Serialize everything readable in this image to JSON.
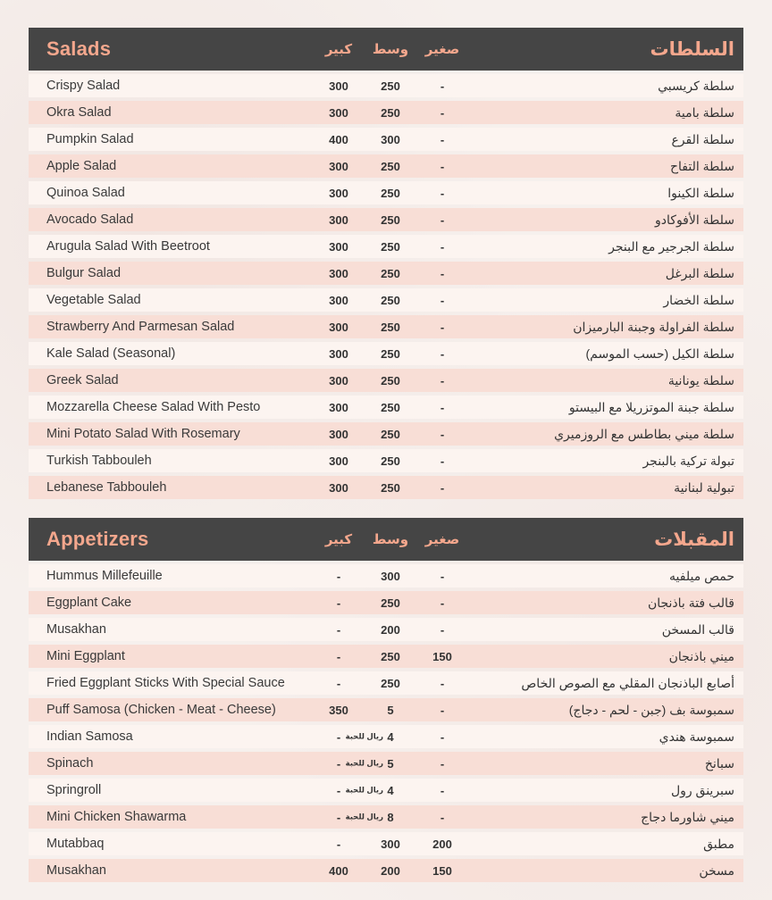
{
  "colors": {
    "page_background": "#f6f0ed",
    "header_background": "#454545",
    "accent_salmon": "#f4a78d",
    "row_light": "#fcf4f0",
    "row_pink": "#f8ded6",
    "text_dark": "#333333"
  },
  "columns": {
    "large": "كبير",
    "medium": "وسط",
    "small": "صغير"
  },
  "sections": [
    {
      "title_en": "Salads",
      "title_ar": "السلطات",
      "rows": [
        {
          "en": "Crispy Salad",
          "ar": "سلطة كريسبي",
          "large": "300",
          "medium": "250",
          "small": "-",
          "medium_unit": ""
        },
        {
          "en": "Okra Salad",
          "ar": "سلطة بامية",
          "large": "300",
          "medium": "250",
          "small": "-",
          "medium_unit": ""
        },
        {
          "en": "Pumpkin Salad",
          "ar": "سلطة القرع",
          "large": "400",
          "medium": "300",
          "small": "-",
          "medium_unit": ""
        },
        {
          "en": "Apple Salad",
          "ar": "سلطة التفاح",
          "large": "300",
          "medium": "250",
          "small": "-",
          "medium_unit": ""
        },
        {
          "en": "Quinoa Salad",
          "ar": "سلطة الكينوا",
          "large": "300",
          "medium": "250",
          "small": "-",
          "medium_unit": ""
        },
        {
          "en": "Avocado Salad",
          "ar": "سلطة الأفوكادو",
          "large": "300",
          "medium": "250",
          "small": "-",
          "medium_unit": ""
        },
        {
          "en": "Arugula Salad With Beetroot",
          "ar": "سلطة الجرجير مع البنجر",
          "large": "300",
          "medium": "250",
          "small": "-",
          "medium_unit": ""
        },
        {
          "en": "Bulgur Salad",
          "ar": "سلطة البرغل",
          "large": "300",
          "medium": "250",
          "small": "-",
          "medium_unit": ""
        },
        {
          "en": "Vegetable Salad",
          "ar": "سلطة الخضار",
          "large": "300",
          "medium": "250",
          "small": "-",
          "medium_unit": ""
        },
        {
          "en": "Strawberry And Parmesan Salad",
          "ar": "سلطة الفراولة وجبنة البارميزان",
          "large": "300",
          "medium": "250",
          "small": "-",
          "medium_unit": ""
        },
        {
          "en": "Kale Salad (Seasonal)",
          "ar": "سلطة الكيل (حسب الموسم)",
          "large": "300",
          "medium": "250",
          "small": "-",
          "medium_unit": ""
        },
        {
          "en": "Greek Salad",
          "ar": "سلطة يونانية",
          "large": "300",
          "medium": "250",
          "small": "-",
          "medium_unit": ""
        },
        {
          "en": "Mozzarella Cheese Salad With Pesto",
          "ar": "سلطة جبنة الموتزريلا مع البيستو",
          "large": "300",
          "medium": "250",
          "small": "-",
          "medium_unit": ""
        },
        {
          "en": "Mini Potato Salad With Rosemary",
          "ar": "سلطة ميني بطاطس مع الروزميري",
          "large": "300",
          "medium": "250",
          "small": "-",
          "medium_unit": ""
        },
        {
          "en": "Turkish Tabbouleh",
          "ar": "تبولة تركية بالبنجر",
          "large": "300",
          "medium": "250",
          "small": "-",
          "medium_unit": ""
        },
        {
          "en": "Lebanese Tabbouleh",
          "ar": "تبولية لبنانية",
          "large": "300",
          "medium": "250",
          "small": "-",
          "medium_unit": ""
        }
      ]
    },
    {
      "title_en": "Appetizers",
      "title_ar": "المقبلات",
      "rows": [
        {
          "en": "Hummus Millefeuille",
          "ar": "حمص ميلفيه",
          "large": "-",
          "medium": "300",
          "small": "-",
          "medium_unit": ""
        },
        {
          "en": "Eggplant Cake",
          "ar": "قالب فتة باذنجان",
          "large": "-",
          "medium": "250",
          "small": "-",
          "medium_unit": ""
        },
        {
          "en": "Musakhan",
          "ar": "قالب المسخن",
          "large": "-",
          "medium": "200",
          "small": "-",
          "medium_unit": ""
        },
        {
          "en": "Mini Eggplant",
          "ar": "ميني باذنجان",
          "large": "-",
          "medium": "250",
          "small": "150",
          "medium_unit": ""
        },
        {
          "en": "Fried Eggplant Sticks With Special Sauce",
          "ar": "أصابع الباذنجان المقلي مع الصوص الخاص",
          "large": "-",
          "medium": "250",
          "small": "-",
          "medium_unit": ""
        },
        {
          "en": "Puff Samosa (Chicken - Meat - Cheese)",
          "ar": "سمبوسة بف (جبن - لحم - دجاج)",
          "large": "350",
          "medium": "5",
          "small": "-",
          "medium_unit": ""
        },
        {
          "en": "Indian Samosa",
          "ar": "سمبوسة هندي",
          "large": "-",
          "medium": "4",
          "small": "-",
          "medium_unit": "ريال للحبة"
        },
        {
          "en": "Spinach",
          "ar": "سبانخ",
          "large": "-",
          "medium": "5",
          "small": "-",
          "medium_unit": "ريال للحبة"
        },
        {
          "en": "Springroll",
          "ar": "سبرينق رول",
          "large": "-",
          "medium": "4",
          "small": "-",
          "medium_unit": "ريال للحبة"
        },
        {
          "en": "Mini Chicken Shawarma",
          "ar": "ميني شاورما دجاج",
          "large": "-",
          "medium": "8",
          "small": "-",
          "medium_unit": "ريال للحبة"
        },
        {
          "en": "Mutabbaq",
          "ar": "مطبق",
          "large": "-",
          "medium": "300",
          "small": "200",
          "medium_unit": ""
        },
        {
          "en": "Musakhan",
          "ar": "مسخن",
          "large": "400",
          "medium": "200",
          "small": "150",
          "medium_unit": ""
        }
      ]
    }
  ]
}
